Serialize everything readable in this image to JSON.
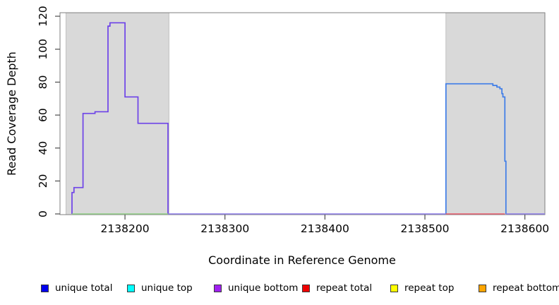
{
  "chart_data": {
    "type": "line",
    "title": "",
    "xlabel": "Coordinate in Reference Genome",
    "ylabel": "Read Coverage Depth",
    "xlim": [
      2138135,
      2138620
    ],
    "ylim": [
      0,
      120
    ],
    "x_ticks": [
      2138200,
      2138300,
      2138400,
      2138500,
      2138600
    ],
    "y_ticks": [
      0,
      20,
      40,
      60,
      80,
      100,
      120
    ],
    "grid": false,
    "legend_position": "bottom",
    "plot_bg": "#ffffff",
    "box_color": "#7f7f7f",
    "tick_color": "#4d4d4d",
    "repeat_region_fill": "#d9d9d9",
    "repeat_region_border": "#c2c2c2",
    "repeat_regions": [
      {
        "start": 2138141,
        "end": 2138244
      },
      {
        "start": 2138521,
        "end": 2138620
      }
    ],
    "series": [
      {
        "name": "left-block-coverage (unique bottom + unique total overlay)",
        "color": "#6d42e8",
        "width": 1.7,
        "points": [
          [
            2138147,
            0
          ],
          [
            2138147,
            13
          ],
          [
            2138149,
            13
          ],
          [
            2138149,
            16
          ],
          [
            2138158,
            16
          ],
          [
            2138158,
            61
          ],
          [
            2138170,
            61
          ],
          [
            2138170,
            62
          ],
          [
            2138183,
            62
          ],
          [
            2138183,
            114
          ],
          [
            2138185,
            114
          ],
          [
            2138185,
            116
          ],
          [
            2138200,
            116
          ],
          [
            2138200,
            71
          ],
          [
            2138213,
            71
          ],
          [
            2138213,
            55
          ],
          [
            2138243,
            55
          ],
          [
            2138243,
            0
          ]
        ]
      },
      {
        "name": "right-block-coverage (unique top + unique total overlay)",
        "color": "#3d7ce8",
        "width": 1.7,
        "points": [
          [
            2138521,
            0
          ],
          [
            2138521,
            79
          ],
          [
            2138568,
            79
          ],
          [
            2138568,
            78
          ],
          [
            2138572,
            78
          ],
          [
            2138572,
            77
          ],
          [
            2138575,
            77
          ],
          [
            2138575,
            76
          ],
          [
            2138577,
            76
          ],
          [
            2138577,
            73
          ],
          [
            2138578,
            73
          ],
          [
            2138578,
            71
          ],
          [
            2138580,
            71
          ],
          [
            2138580,
            32
          ],
          [
            2138581,
            32
          ],
          [
            2138581,
            0
          ]
        ]
      },
      {
        "name": "zero-baseline-left-region (green)",
        "color": "#90cd86",
        "width": 1.4,
        "points": [
          [
            2138147,
            0
          ],
          [
            2138243,
            0
          ]
        ]
      },
      {
        "name": "zero-baseline-middle (lavender)",
        "color": "#8b7be8",
        "width": 1.4,
        "points": [
          [
            2138243,
            0
          ],
          [
            2138521,
            0
          ]
        ]
      },
      {
        "name": "zero-baseline-right-region (red)",
        "color": "#e85c6e",
        "width": 1.4,
        "points": [
          [
            2138521,
            0
          ],
          [
            2138580,
            0
          ]
        ]
      },
      {
        "name": "zero-baseline-far-right (lavender)",
        "color": "#8b7be8",
        "width": 1.4,
        "points": [
          [
            2138581,
            0
          ],
          [
            2138620,
            0
          ]
        ]
      }
    ],
    "legend": [
      {
        "label": "unique total",
        "color": "#0000ee"
      },
      {
        "label": "unique top",
        "color": "#00ffff"
      },
      {
        "label": "unique bottom",
        "color": "#a020f0"
      },
      {
        "label": "repeat total",
        "color": "#ee0000"
      },
      {
        "label": "repeat top",
        "color": "#ffff00"
      },
      {
        "label": "repeat bottom",
        "color": "#ffa500"
      }
    ]
  }
}
